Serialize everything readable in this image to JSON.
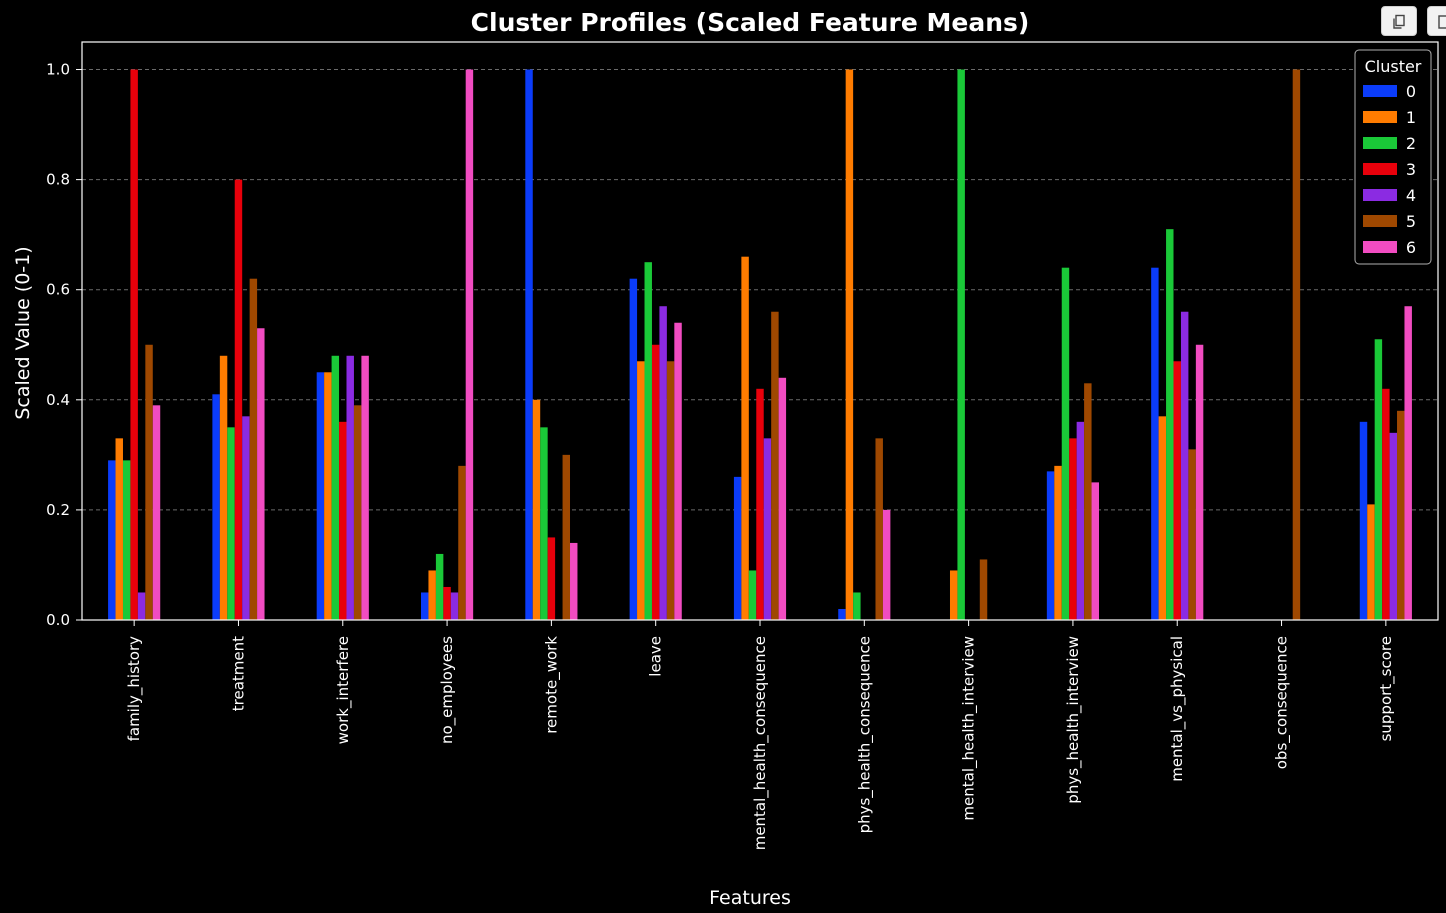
{
  "toolbar": {
    "copy_icon": "copy-icon",
    "export_icon": "export-icon"
  },
  "colors": {
    "background": "#000000",
    "axis": "#ffffff",
    "grid": "#6a6a6a",
    "series": [
      "#0b3cfa",
      "#ff7c00",
      "#1ac938",
      "#e8000b",
      "#8b2be2",
      "#9f4800",
      "#f14cc1"
    ]
  },
  "chart_data": {
    "type": "bar",
    "title": "Cluster Profiles (Scaled Feature Means)",
    "xlabel": "Features",
    "ylabel": "Scaled Value (0-1)",
    "ylim": [
      0,
      1.05
    ],
    "yticks": [
      "0.0",
      "0.2",
      "0.4",
      "0.6",
      "0.8",
      "1.0"
    ],
    "grid": "horizontal dashed",
    "legend": {
      "title": "Cluster",
      "placement": "top-right"
    },
    "categories": [
      "family_history",
      "treatment",
      "work_interfere",
      "no_employees",
      "remote_work",
      "leave",
      "mental_health_consequence",
      "phys_health_consequence",
      "mental_health_interview",
      "phys_health_interview",
      "mental_vs_physical",
      "obs_consequence",
      "support_score"
    ],
    "series": [
      {
        "name": "0",
        "values": [
          0.29,
          0.41,
          0.45,
          0.05,
          1.0,
          0.62,
          0.26,
          0.02,
          0.0,
          0.27,
          0.64,
          0.0,
          0.36
        ]
      },
      {
        "name": "1",
        "values": [
          0.33,
          0.48,
          0.45,
          0.09,
          0.4,
          0.47,
          0.66,
          1.0,
          0.09,
          0.28,
          0.37,
          0.0,
          0.21
        ]
      },
      {
        "name": "2",
        "values": [
          0.29,
          0.35,
          0.48,
          0.12,
          0.35,
          0.65,
          0.09,
          0.05,
          1.0,
          0.64,
          0.71,
          0.0,
          0.51
        ]
      },
      {
        "name": "3",
        "values": [
          1.0,
          0.8,
          0.36,
          0.06,
          0.15,
          0.5,
          0.42,
          0.0,
          0.0,
          0.33,
          0.47,
          0.0,
          0.42
        ]
      },
      {
        "name": "4",
        "values": [
          0.05,
          0.37,
          0.48,
          0.05,
          0.0,
          0.57,
          0.33,
          0.0,
          0.0,
          0.36,
          0.56,
          0.0,
          0.34
        ]
      },
      {
        "name": "5",
        "values": [
          0.5,
          0.62,
          0.39,
          0.28,
          0.3,
          0.47,
          0.56,
          0.33,
          0.11,
          0.43,
          0.31,
          1.0,
          0.38
        ]
      },
      {
        "name": "6",
        "values": [
          0.39,
          0.53,
          0.48,
          1.0,
          0.14,
          0.54,
          0.44,
          0.2,
          0.0,
          0.25,
          0.5,
          0.0,
          0.57
        ]
      }
    ]
  }
}
